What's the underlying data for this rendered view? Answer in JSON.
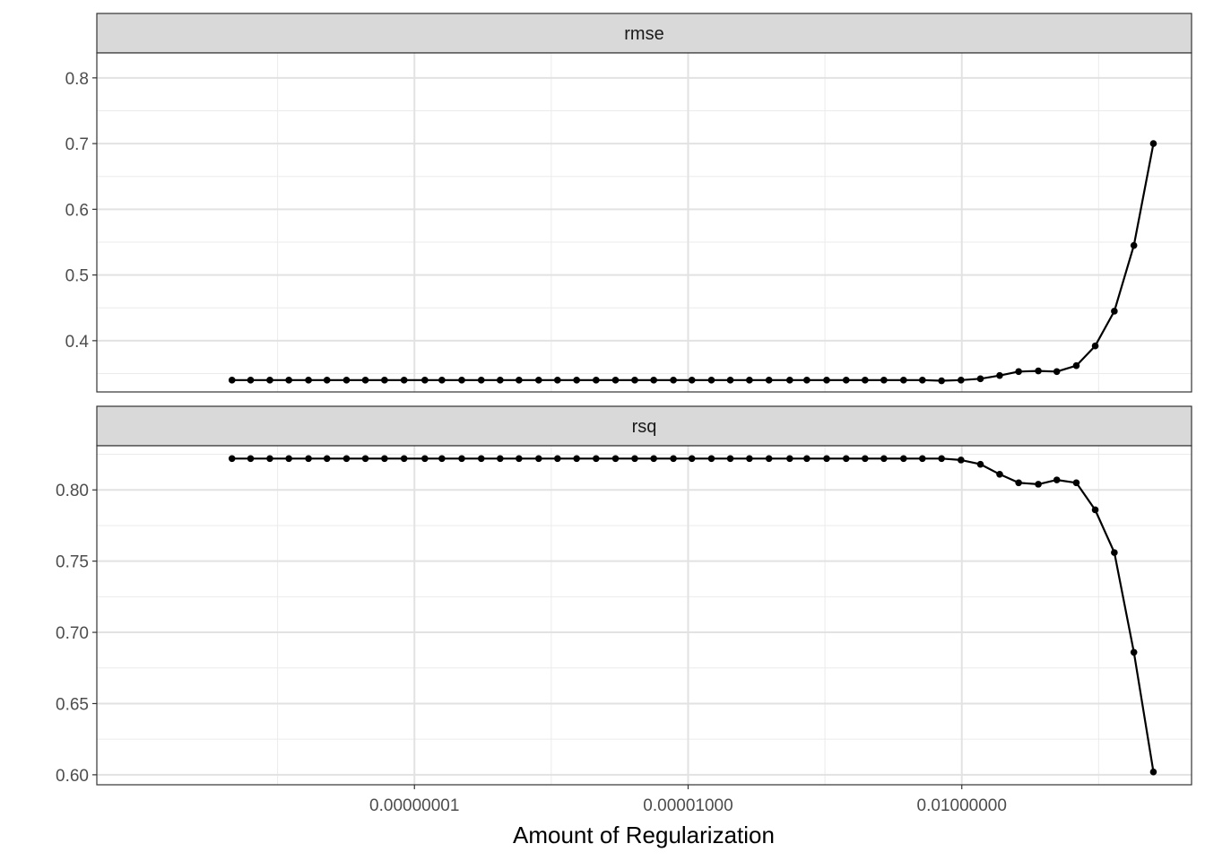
{
  "chart_data": {
    "type": "line",
    "facet_layout": "2 rows, 1 column, shared x axis, free y axes",
    "xlabel": "Amount of Regularization",
    "xscale": "log10",
    "xlim": [
      3.3e-12,
      3.3
    ],
    "xticks": [
      1e-08,
      1e-05,
      0.01
    ],
    "xtick_labels": [
      "0.00000001",
      "0.00001000",
      "0.01000000"
    ],
    "x_penalty": [
      1e-10,
      1.6e-10,
      2.6e-10,
      4.2e-10,
      6.9e-10,
      1.1e-09,
      1.8e-09,
      2.9e-09,
      4.7e-09,
      7.7e-09,
      1.3e-08,
      2e-08,
      3.3e-08,
      5.4e-08,
      8.7e-08,
      1.4e-07,
      2.3e-07,
      3.7e-07,
      6e-07,
      9.8e-07,
      1.6e-06,
      2.6e-06,
      4.2e-06,
      6.9e-06,
      1.1e-05,
      1.8e-05,
      2.9e-05,
      4.7e-05,
      7.7e-05,
      0.00013,
      0.0002,
      0.00033,
      0.00054,
      0.00087,
      0.0014,
      0.0023,
      0.0037,
      0.006,
      0.0098,
      0.016,
      0.026,
      0.042,
      0.069,
      0.11,
      0.18,
      0.29,
      0.47,
      0.77,
      1.26
    ],
    "grid": true,
    "legend": "none",
    "line_color": "#000000",
    "panels": [
      {
        "strip_label": "rmse",
        "ylim": [
          0.322,
          0.838
        ],
        "yticks": [
          0.4,
          0.5,
          0.6,
          0.7,
          0.8
        ],
        "ytick_labels": [
          "0.4",
          "0.5",
          "0.6",
          "0.7",
          "0.8"
        ],
        "values": [
          0.34,
          0.34,
          0.34,
          0.34,
          0.34,
          0.34,
          0.34,
          0.34,
          0.34,
          0.34,
          0.34,
          0.34,
          0.34,
          0.34,
          0.34,
          0.34,
          0.34,
          0.34,
          0.34,
          0.34,
          0.34,
          0.34,
          0.34,
          0.34,
          0.34,
          0.34,
          0.34,
          0.34,
          0.34,
          0.34,
          0.34,
          0.34,
          0.34,
          0.34,
          0.34,
          0.34,
          0.34,
          0.339,
          0.34,
          0.342,
          0.347,
          0.353,
          0.354,
          0.353,
          0.362,
          0.392,
          0.445,
          0.545,
          0.7
        ]
      },
      {
        "strip_label": "rsq",
        "ylim": [
          0.593,
          0.831
        ],
        "yticks": [
          0.6,
          0.65,
          0.7,
          0.75,
          0.8
        ],
        "ytick_labels": [
          "0.60",
          "0.65",
          "0.70",
          "0.75",
          "0.80"
        ],
        "values": [
          0.822,
          0.822,
          0.822,
          0.822,
          0.822,
          0.822,
          0.822,
          0.822,
          0.822,
          0.822,
          0.822,
          0.822,
          0.822,
          0.822,
          0.822,
          0.822,
          0.822,
          0.822,
          0.822,
          0.822,
          0.822,
          0.822,
          0.822,
          0.822,
          0.822,
          0.822,
          0.822,
          0.822,
          0.822,
          0.822,
          0.822,
          0.822,
          0.822,
          0.822,
          0.822,
          0.822,
          0.822,
          0.822,
          0.821,
          0.818,
          0.811,
          0.805,
          0.804,
          0.807,
          0.805,
          0.786,
          0.756,
          0.686,
          0.602
        ]
      }
    ]
  }
}
